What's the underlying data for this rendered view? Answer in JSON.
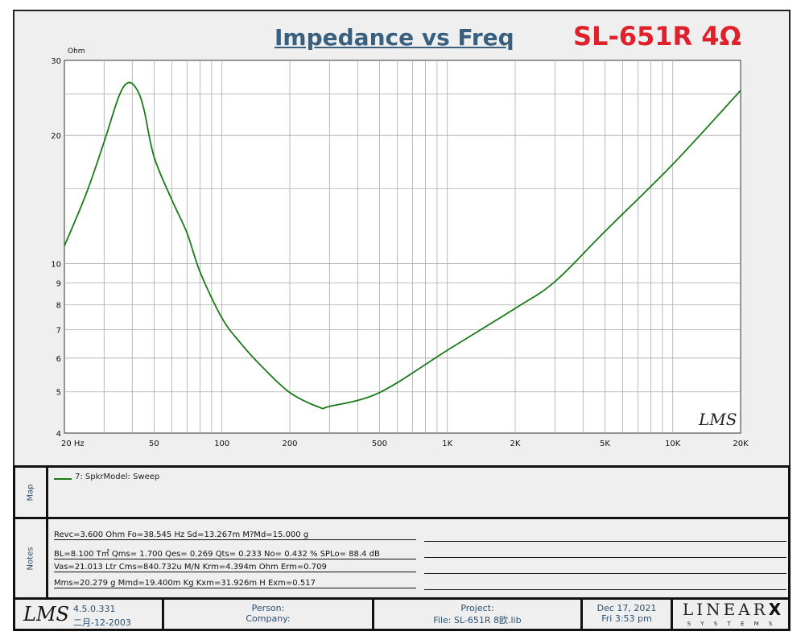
{
  "header": {
    "title": "Impedance vs Freq",
    "model": "SL-651R 4Ω"
  },
  "chart_data": {
    "type": "line",
    "title": "Impedance vs Freq",
    "ylabel": "Ohm",
    "xlabel": "",
    "xscale": "log",
    "yscale": "log",
    "xlim": [
      20,
      20000
    ],
    "ylim": [
      4,
      30
    ],
    "xticks": [
      {
        "v": 20,
        "l": "20  Hz"
      },
      {
        "v": 50,
        "l": "50"
      },
      {
        "v": 100,
        "l": "100"
      },
      {
        "v": 200,
        "l": "200"
      },
      {
        "v": 500,
        "l": "500"
      },
      {
        "v": 1000,
        "l": "1K"
      },
      {
        "v": 2000,
        "l": "2K"
      },
      {
        "v": 5000,
        "l": "5K"
      },
      {
        "v": 10000,
        "l": "10K"
      },
      {
        "v": 20000,
        "l": "20K"
      }
    ],
    "yticks": [
      {
        "v": 4,
        "l": "4"
      },
      {
        "v": 5,
        "l": "5"
      },
      {
        "v": 6,
        "l": "6"
      },
      {
        "v": 7,
        "l": "7"
      },
      {
        "v": 8,
        "l": "8"
      },
      {
        "v": 9,
        "l": "9"
      },
      {
        "v": 10,
        "l": "10"
      },
      {
        "v": 20,
        "l": "20"
      },
      {
        "v": 30,
        "l": "30"
      }
    ],
    "series": [
      {
        "name": "7: SpkrModel: Sweep",
        "color": "#1a7a1a",
        "x": [
          20,
          25,
          30,
          35,
          38.5,
          42,
          45,
          50,
          60,
          70,
          80,
          100,
          120,
          150,
          200,
          270,
          300,
          500,
          1000,
          2000,
          3000,
          5000,
          10000,
          20000
        ],
        "y": [
          11.0,
          14.6,
          19.3,
          24.8,
          26.6,
          25.6,
          23.1,
          17.8,
          14.1,
          11.8,
          9.55,
          7.45,
          6.54,
          5.74,
          4.98,
          4.6,
          4.62,
          4.98,
          6.26,
          7.85,
          9.07,
          11.9,
          17.1,
          25.5
        ]
      }
    ],
    "grid": true,
    "legend": "map-panel"
  },
  "watermark": "LMS",
  "map": {
    "side_label": "Map",
    "legend": "7: SpkrModel: Sweep"
  },
  "notes": {
    "side_label": "Notes",
    "lines": [
      "Revc=3.600 Ohm  Fo=38.545 Hz  Sd=13.267m M?Md=15.000 g",
      "BL=8.100 T㎡  Qms= 1.700  Qes= 0.269  Qts= 0.233  No= 0.432 %  SPLo= 88.4 dB",
      "Vas=21.013 Ltr  Cms=840.732u M/N  Krm=4.394m Ohm  Erm=0.709",
      "Mms=20.279 g  Mmd=19.400m Kg  Kxm=31.926m H  Exm=0.517"
    ]
  },
  "footer": {
    "logo": "LMS",
    "version": "4.5.0.331",
    "build_date": "二月-12-2003",
    "person": "Person:",
    "company": "Company:",
    "project": "Project:",
    "file": "File: SL-651R 8欧.lib",
    "date": "Dec 17, 2021",
    "time": "Fri  3:53 pm",
    "brand": "LINEAR",
    "brand_x": "X",
    "brand_sub": "S Y S T E M S"
  }
}
